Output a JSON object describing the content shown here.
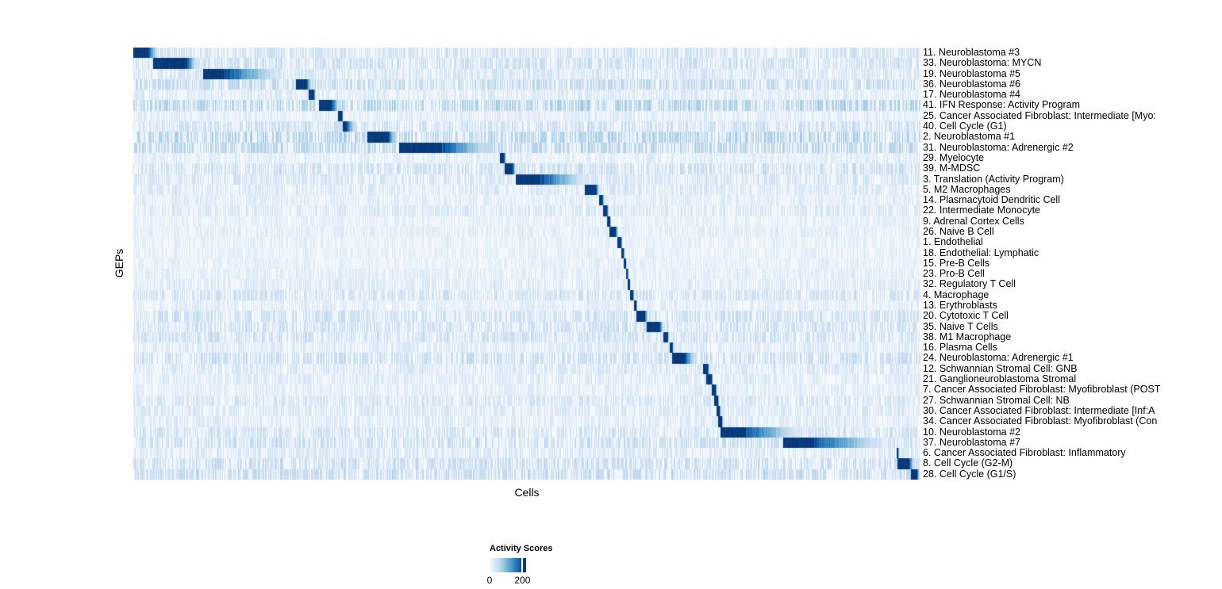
{
  "chart_data": {
    "type": "heatmap",
    "xlabel": "Cells",
    "ylabel": "GEPs",
    "colormap": {
      "name": "Blues",
      "stops": [
        "#F7FBFF",
        "#DEEBF7",
        "#C6DBEF",
        "#9ECAE1",
        "#6BAED6",
        "#4292C6",
        "#2171B5",
        "#08519C",
        "#08306B"
      ]
    },
    "legend": {
      "title": "Activity Scores",
      "ticks": [
        {
          "label": "0",
          "t": 0.0
        },
        {
          "label": "200",
          "t": 0.9
        }
      ],
      "min": 0,
      "max": 200
    },
    "value_range_note": "each GEP row shows a dark activity block (score near max) over its own cells, fading to near 0 elsewhere",
    "rows": [
      {
        "label": "11. Neuroblastoma #3",
        "block_start": 0.0,
        "block_peak": 0.018,
        "block_end": 0.034,
        "noise": 0.55
      },
      {
        "label": "33. Neuroblastoma: MYCN",
        "block_start": 0.025,
        "block_peak": 0.067,
        "block_end": 0.083,
        "noise": 0.6
      },
      {
        "label": "19. Neuroblastoma #5",
        "block_start": 0.088,
        "block_peak": 0.115,
        "block_end": 0.2,
        "noise": 0.5
      },
      {
        "label": "36. Neuroblastoma #6",
        "block_start": 0.206,
        "block_peak": 0.22,
        "block_end": 0.227,
        "noise": 0.75
      },
      {
        "label": "17. Neuroblastoma #4",
        "block_start": 0.222,
        "block_peak": 0.229,
        "block_end": 0.232,
        "noise": 0.4
      },
      {
        "label": "41. IFN Response: Activity Program",
        "block_start": 0.236,
        "block_peak": 0.252,
        "block_end": 0.263,
        "noise": 0.85
      },
      {
        "label": "25. Cancer Associated Fibroblast: Intermediate [Myo:",
        "block_start": 0.26,
        "block_peak": 0.265,
        "block_end": 0.267,
        "noise": 0.35
      },
      {
        "label": "40. Cell Cycle (G1)",
        "block_start": 0.266,
        "block_peak": 0.271,
        "block_end": 0.284,
        "noise": 0.6
      },
      {
        "label": "2. Neuroblastoma #1",
        "block_start": 0.297,
        "block_peak": 0.324,
        "block_end": 0.336,
        "noise": 0.85
      },
      {
        "label": "31. Neuroblastoma: Adrenergic #2",
        "block_start": 0.338,
        "block_peak": 0.392,
        "block_end": 0.469,
        "noise": 0.8
      },
      {
        "label": "29. Myelocyte",
        "block_start": 0.466,
        "block_peak": 0.471,
        "block_end": 0.474,
        "noise": 0.35
      },
      {
        "label": "39. M-MDSC",
        "block_start": 0.472,
        "block_peak": 0.482,
        "block_end": 0.487,
        "noise": 0.6
      },
      {
        "label": "3. Translation (Activity Program)",
        "block_start": 0.486,
        "block_peak": 0.517,
        "block_end": 0.586,
        "noise": 0.5
      },
      {
        "label": "5. M2 Macrophages",
        "block_start": 0.574,
        "block_peak": 0.588,
        "block_end": 0.593,
        "noise": 0.45
      },
      {
        "label": "14. Plasmacytoid Dendritic Cell",
        "block_start": 0.592,
        "block_peak": 0.596,
        "block_end": 0.599,
        "noise": 0.35
      },
      {
        "label": "22. Intermediate Monocyte",
        "block_start": 0.597,
        "block_peak": 0.602,
        "block_end": 0.605,
        "noise": 0.45
      },
      {
        "label": "9. Adrenal Cortex Cells",
        "block_start": 0.602,
        "block_peak": 0.606,
        "block_end": 0.607,
        "noise": 0.3
      },
      {
        "label": "26. Naive B Cell",
        "block_start": 0.605,
        "block_peak": 0.613,
        "block_end": 0.617,
        "noise": 0.35
      },
      {
        "label": "1. Endothelial",
        "block_start": 0.615,
        "block_peak": 0.62,
        "block_end": 0.622,
        "noise": 0.3
      },
      {
        "label": "18. Endothelial: Lymphatic",
        "block_start": 0.62,
        "block_peak": 0.623,
        "block_end": 0.625,
        "noise": 0.3
      },
      {
        "label": "15. Pre-B Cells",
        "block_start": 0.623,
        "block_peak": 0.626,
        "block_end": 0.627,
        "noise": 0.3
      },
      {
        "label": "23. Pro-B Cell",
        "block_start": 0.626,
        "block_peak": 0.628,
        "block_end": 0.63,
        "noise": 0.35
      },
      {
        "label": "32. Regulatory T Cell",
        "block_start": 0.628,
        "block_peak": 0.631,
        "block_end": 0.632,
        "noise": 0.4
      },
      {
        "label": "4. Macrophage",
        "block_start": 0.631,
        "block_peak": 0.635,
        "block_end": 0.637,
        "noise": 0.55
      },
      {
        "label": "13. Erythroblasts",
        "block_start": 0.636,
        "block_peak": 0.639,
        "block_end": 0.641,
        "noise": 0.35
      },
      {
        "label": "20. Cytotoxic T Cell",
        "block_start": 0.639,
        "block_peak": 0.65,
        "block_end": 0.655,
        "noise": 0.6
      },
      {
        "label": "35. Naive T Cells",
        "block_start": 0.652,
        "block_peak": 0.669,
        "block_end": 0.675,
        "noise": 0.6
      },
      {
        "label": "38. M1 Macrophage",
        "block_start": 0.674,
        "block_peak": 0.679,
        "block_end": 0.681,
        "noise": 0.6
      },
      {
        "label": "16. Plasma Cells",
        "block_start": 0.682,
        "block_peak": 0.685,
        "block_end": 0.687,
        "noise": 0.4
      },
      {
        "label": "24. Neuroblastoma: Adrenergic #1",
        "block_start": 0.685,
        "block_peak": 0.701,
        "block_end": 0.717,
        "noise": 0.65
      },
      {
        "label": "12. Schwannian Stromal Cell: GNB",
        "block_start": 0.724,
        "block_peak": 0.73,
        "block_end": 0.733,
        "noise": 0.45
      },
      {
        "label": "21. Ganglioneuroblastoma Stromal",
        "block_start": 0.728,
        "block_peak": 0.735,
        "block_end": 0.737,
        "noise": 0.4
      },
      {
        "label": "7. Cancer Associated Fibroblast: Myofibroblast (POST",
        "block_start": 0.735,
        "block_peak": 0.74,
        "block_end": 0.742,
        "noise": 0.35
      },
      {
        "label": "27. Schwannian Stromal Cell: NB",
        "block_start": 0.738,
        "block_peak": 0.743,
        "block_end": 0.745,
        "noise": 0.5
      },
      {
        "label": "30. Cancer Associated Fibroblast: Intermediate [Inf:A",
        "block_start": 0.741,
        "block_peak": 0.745,
        "block_end": 0.747,
        "noise": 0.45
      },
      {
        "label": "34. Cancer Associated Fibroblast: Myofibroblast (Con",
        "block_start": 0.743,
        "block_peak": 0.748,
        "block_end": 0.75,
        "noise": 0.4
      },
      {
        "label": "10. Neuroblastoma #2",
        "block_start": 0.746,
        "block_peak": 0.777,
        "block_end": 0.859,
        "noise": 0.55
      },
      {
        "label": "37. Neuroblastoma #7",
        "block_start": 0.826,
        "block_peak": 0.865,
        "block_end": 0.97,
        "noise": 0.65
      },
      {
        "label": "6. Cancer Associated Fibroblast: Inflammatory",
        "block_start": 0.97,
        "block_peak": 0.972,
        "block_end": 0.974,
        "noise": 0.45
      },
      {
        "label": "8. Cell Cycle (G2-M)",
        "block_start": 0.971,
        "block_peak": 0.986,
        "block_end": 0.994,
        "noise": 0.65
      },
      {
        "label": "28. Cell Cycle (G1/S)",
        "block_start": 0.988,
        "block_peak": 0.996,
        "block_end": 1.0,
        "noise": 0.7
      }
    ]
  }
}
